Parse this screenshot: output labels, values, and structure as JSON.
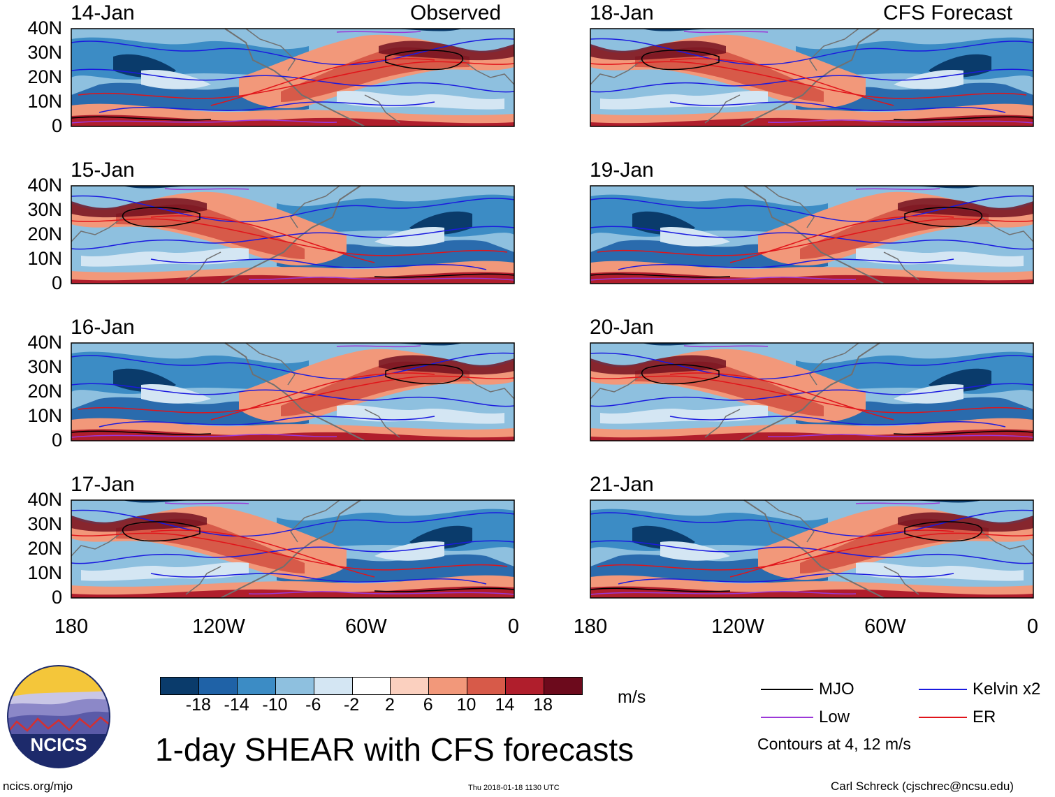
{
  "header": {
    "left_title": "Observed",
    "right_title": "CFS Forecast"
  },
  "panels_left": [
    {
      "date": "14-Jan"
    },
    {
      "date": "15-Jan"
    },
    {
      "date": "16-Jan"
    },
    {
      "date": "17-Jan"
    }
  ],
  "panels_right": [
    {
      "date": "18-Jan"
    },
    {
      "date": "19-Jan"
    },
    {
      "date": "20-Jan"
    },
    {
      "date": "21-Jan"
    }
  ],
  "y_ticks": [
    "40N",
    "30N",
    "20N",
    "10N",
    "0"
  ],
  "x_ticks": [
    "180",
    "120W",
    "60W",
    "0"
  ],
  "colorbar": {
    "unit": "m/s",
    "labels": [
      "-18",
      "-14",
      "-10",
      "-6",
      "-2",
      "2",
      "6",
      "10",
      "14",
      "18"
    ],
    "colors": [
      "#0a3b6b",
      "#1f62a7",
      "#3c8cc5",
      "#8ec0df",
      "#d4e6f3",
      "#ffffff",
      "#fbd0bf",
      "#f2987a",
      "#d75a49",
      "#b01e2c",
      "#6c0a1c"
    ]
  },
  "legend": {
    "mjo": "MJO",
    "kelvin": "Kelvin x2",
    "low": "Low",
    "er": "ER",
    "note": "Contours at 4, 12 m/s",
    "colors": {
      "mjo": "#000000",
      "kelvin": "#1a1adf",
      "low": "#9b38d8",
      "er": "#e0141a"
    }
  },
  "logo": {
    "text": "NCICS"
  },
  "title": "1-day SHEAR with CFS forecasts",
  "footer": {
    "url": "ncics.org/mjo",
    "timestamp": "Thu 2018-01-18 1130 UTC",
    "author": "Carl Schreck (cjschrec@ncsu.edu)"
  }
}
